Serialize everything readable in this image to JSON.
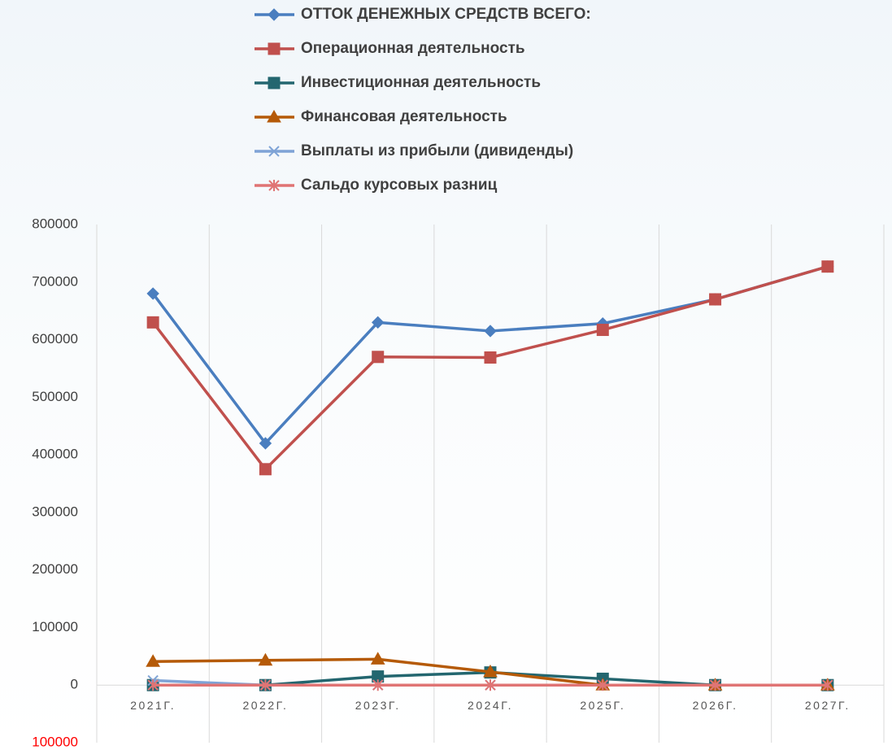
{
  "chart_data": {
    "type": "line",
    "categories": [
      "2021Г.",
      "2022Г.",
      "2023Г.",
      "2024Г.",
      "2025Г.",
      "2026Г.",
      "2027Г."
    ],
    "series": [
      {
        "name": "ОТТОК ДЕНЕЖНЫХ СРЕДСТВ ВСЕГО:",
        "color": "#4a7ebf",
        "marker": "diamond",
        "values": [
          680000,
          420000,
          630000,
          615000,
          628000,
          670000,
          727000
        ]
      },
      {
        "name": "Операционная деятельность",
        "color": "#c0504d",
        "marker": "square",
        "values": [
          630000,
          375000,
          570000,
          569000,
          617000,
          670000,
          727000
        ]
      },
      {
        "name": "Инвестиционная деятельность",
        "color": "#23666f",
        "marker": "square",
        "values": [
          0,
          0,
          15000,
          22000,
          11000,
          0,
          0
        ]
      },
      {
        "name": "Финансовая деятельность",
        "color": "#b55a08",
        "marker": "triangle",
        "values": [
          41000,
          43000,
          45000,
          23000,
          0,
          0,
          0
        ]
      },
      {
        "name": "Выплаты из прибыли (дивиденды)",
        "color": "#7fa3d6",
        "marker": "x",
        "values": [
          8000,
          0,
          0,
          0,
          0,
          0,
          0
        ]
      },
      {
        "name": "Сальдо курсовых разниц",
        "color": "#e07474",
        "marker": "star",
        "values": [
          0,
          0,
          0,
          0,
          0,
          0,
          0
        ]
      }
    ],
    "ylim": [
      -100000,
      800000
    ],
    "yticks": [
      {
        "value": -100000,
        "label": "100000"
      },
      0,
      100000,
      200000,
      300000,
      400000,
      500000,
      600000,
      700000,
      800000
    ],
    "negative_tick_color": "#ff0000",
    "grid": true
  }
}
